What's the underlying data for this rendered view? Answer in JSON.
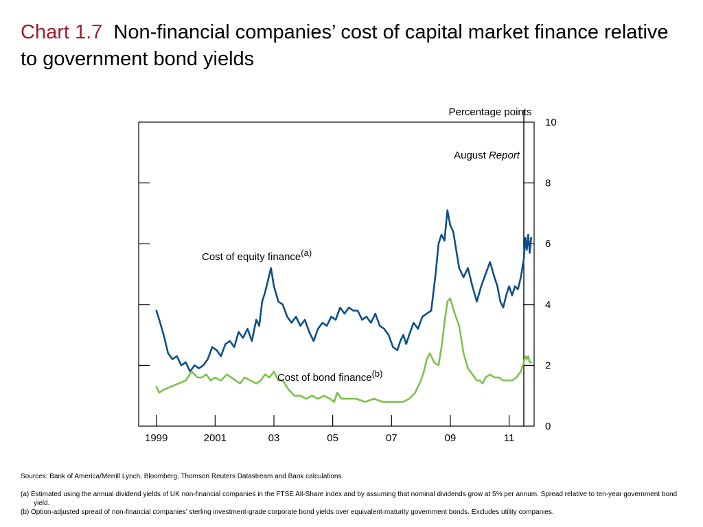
{
  "title": {
    "label": "Chart 1.7",
    "text": "Non-financial companies’ cost of capital market finance relative to government bond yields"
  },
  "notes": {
    "sources": "Sources:  Bank of America/Merrill Lynch, Bloomberg, Thomson Reuters Datastream and Bank calculations.",
    "note_a": "(a) Estimated using the annual dividend yields of UK non-financial companies in the FTSE All-Share index and by assuming that nominal dividends grow at 5% per annum.  Spread relative to ten-year government bond yield.",
    "note_b": "(b) Option-adjusted spread of non-financial companies’ sterling investment-grade corporate bond yields over equivalent-maturity government bonds.  Excludes utility companies."
  },
  "chart_data": {
    "type": "line",
    "ylabel": "Percentage points",
    "ylim": [
      0,
      10
    ],
    "xlim": [
      1998.4,
      2011.85
    ],
    "y_ticks": [
      0,
      2,
      4,
      6,
      8,
      10
    ],
    "x_ticks": [
      {
        "value": 1999,
        "label": "1999"
      },
      {
        "value": 2001,
        "label": "2001"
      },
      {
        "value": 2003,
        "label": "03"
      },
      {
        "value": 2005,
        "label": "05"
      },
      {
        "value": 2007,
        "label": "07"
      },
      {
        "value": 2009,
        "label": "09"
      },
      {
        "value": 2011,
        "label": "11"
      }
    ],
    "grid": false,
    "colors": {
      "equity": "#0e4f86",
      "bond": "#7cc24b"
    },
    "vline": {
      "x": 2011.5,
      "label_main": "August ",
      "label_italic": "Report"
    },
    "series": [
      {
        "name": "Cost of equity finance",
        "superscript": "(a)",
        "x": [
          1999.0,
          1999.1,
          1999.25,
          1999.4,
          1999.55,
          1999.7,
          1999.85,
          2000.0,
          2000.15,
          2000.3,
          2000.45,
          2000.6,
          2000.75,
          2000.9,
          2001.05,
          2001.2,
          2001.35,
          2001.5,
          2001.65,
          2001.8,
          2001.95,
          2002.1,
          2002.25,
          2002.4,
          2002.5,
          2002.6,
          2002.7,
          2002.8,
          2002.9,
          2003.0,
          2003.15,
          2003.3,
          2003.45,
          2003.6,
          2003.75,
          2003.9,
          2004.05,
          2004.2,
          2004.35,
          2004.5,
          2004.65,
          2004.8,
          2004.95,
          2005.1,
          2005.25,
          2005.4,
          2005.55,
          2005.7,
          2005.85,
          2006.0,
          2006.15,
          2006.3,
          2006.45,
          2006.6,
          2006.75,
          2006.9,
          2007.05,
          2007.2,
          2007.3,
          2007.4,
          2007.5,
          2007.6,
          2007.75,
          2007.9,
          2008.05,
          2008.2,
          2008.35,
          2008.5,
          2008.6,
          2008.7,
          2008.8,
          2008.9,
          2009.0,
          2009.1,
          2009.2,
          2009.3,
          2009.45,
          2009.6,
          2009.75,
          2009.9,
          2010.05,
          2010.2,
          2010.35,
          2010.5,
          2010.6,
          2010.7,
          2010.8,
          2010.9,
          2011.0,
          2011.1,
          2011.2,
          2011.3,
          2011.4,
          2011.5,
          2011.55,
          2011.6,
          2011.65,
          2011.7,
          2011.75
        ],
        "y": [
          3.8,
          3.5,
          3.0,
          2.4,
          2.2,
          2.3,
          2.0,
          2.1,
          1.8,
          2.0,
          1.9,
          2.0,
          2.2,
          2.6,
          2.5,
          2.3,
          2.7,
          2.8,
          2.6,
          3.1,
          2.9,
          3.2,
          2.8,
          3.5,
          3.3,
          4.1,
          4.4,
          4.8,
          5.2,
          4.6,
          4.1,
          4.0,
          3.6,
          3.4,
          3.6,
          3.3,
          3.5,
          3.1,
          2.8,
          3.2,
          3.4,
          3.3,
          3.6,
          3.5,
          3.9,
          3.7,
          3.9,
          3.8,
          3.8,
          3.5,
          3.6,
          3.4,
          3.7,
          3.3,
          3.2,
          3.0,
          2.6,
          2.5,
          2.8,
          3.0,
          2.7,
          3.0,
          3.4,
          3.2,
          3.6,
          3.7,
          3.8,
          5.0,
          6.0,
          6.3,
          6.1,
          7.1,
          6.6,
          6.4,
          5.8,
          5.2,
          4.9,
          5.2,
          4.6,
          4.1,
          4.6,
          5.0,
          5.4,
          4.9,
          4.6,
          4.1,
          3.9,
          4.3,
          4.6,
          4.3,
          4.6,
          4.5,
          4.9,
          5.5,
          6.2,
          5.8,
          6.3,
          5.7,
          6.2
        ]
      },
      {
        "name": "Cost of bond finance",
        "superscript": "(b)",
        "x": [
          1999.0,
          1999.1,
          1999.25,
          1999.5,
          1999.75,
          2000.0,
          2000.2,
          2000.4,
          2000.55,
          2000.7,
          2000.85,
          2001.0,
          2001.2,
          2001.4,
          2001.55,
          2001.7,
          2001.85,
          2002.0,
          2002.2,
          2002.4,
          2002.55,
          2002.7,
          2002.85,
          2003.0,
          2003.15,
          2003.3,
          2003.5,
          2003.7,
          2003.9,
          2004.1,
          2004.3,
          2004.5,
          2004.7,
          2004.9,
          2005.05,
          2005.15,
          2005.3,
          2005.5,
          2005.8,
          2006.1,
          2006.4,
          2006.7,
          2007.0,
          2007.2,
          2007.4,
          2007.6,
          2007.8,
          2008.0,
          2008.1,
          2008.2,
          2008.3,
          2008.45,
          2008.6,
          2008.7,
          2008.8,
          2008.9,
          2009.0,
          2009.15,
          2009.3,
          2009.45,
          2009.6,
          2009.75,
          2009.9,
          2010.0,
          2010.1,
          2010.2,
          2010.35,
          2010.5,
          2010.65,
          2010.8,
          2010.95,
          2011.1,
          2011.25,
          2011.4,
          2011.5,
          2011.55,
          2011.6,
          2011.65,
          2011.7,
          2011.75
        ],
        "y": [
          1.3,
          1.1,
          1.2,
          1.3,
          1.4,
          1.5,
          1.8,
          1.6,
          1.6,
          1.7,
          1.5,
          1.6,
          1.5,
          1.7,
          1.6,
          1.5,
          1.4,
          1.6,
          1.5,
          1.4,
          1.5,
          1.7,
          1.6,
          1.8,
          1.5,
          1.5,
          1.2,
          1.0,
          1.0,
          0.9,
          1.0,
          0.9,
          1.0,
          0.9,
          0.8,
          1.1,
          0.9,
          0.9,
          0.9,
          0.8,
          0.9,
          0.8,
          0.8,
          0.8,
          0.8,
          0.9,
          1.1,
          1.5,
          1.8,
          2.2,
          2.4,
          2.1,
          2.0,
          2.6,
          3.4,
          4.1,
          4.2,
          3.7,
          3.3,
          2.4,
          1.9,
          1.7,
          1.5,
          1.5,
          1.4,
          1.6,
          1.7,
          1.6,
          1.6,
          1.5,
          1.5,
          1.5,
          1.6,
          1.8,
          2.1,
          2.3,
          2.2,
          2.3,
          2.1,
          2.1
        ]
      }
    ]
  }
}
